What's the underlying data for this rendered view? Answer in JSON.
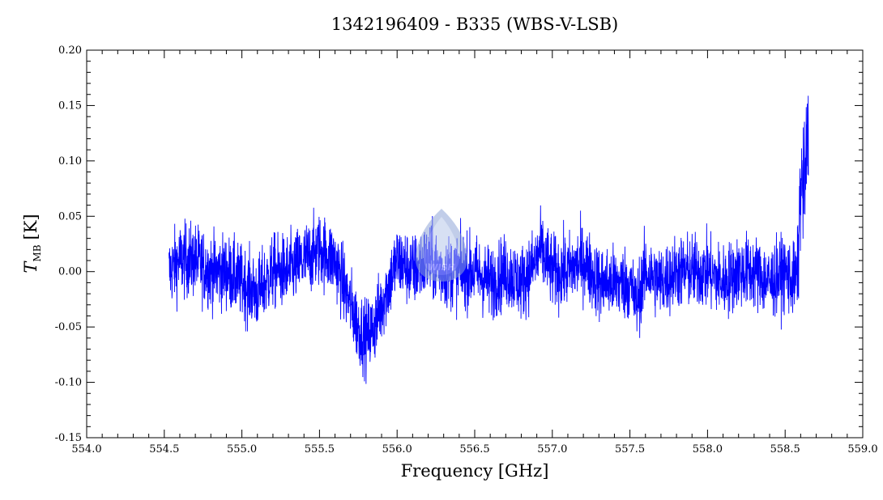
{
  "chart_data": {
    "type": "line",
    "title": "1342196409 - B335 (WBS-V-LSB)",
    "xlabel": "Frequency [GHz]",
    "ylabel_main": "T",
    "ylabel_sub": "MB",
    "ylabel_unit": "[K]",
    "xlim": [
      554.0,
      559.0
    ],
    "ylim": [
      -0.15,
      0.2
    ],
    "x_ticks": [
      "554.0",
      "554.5",
      "555.0",
      "555.5",
      "556.0",
      "556.5",
      "557.0",
      "557.5",
      "558.0",
      "558.5",
      "559.0"
    ],
    "y_ticks": [
      "0.20",
      "0.15",
      "0.10",
      "0.05",
      "0.00",
      "-0.05",
      "-0.10",
      "-0.15"
    ],
    "x_tick_values": [
      554.0,
      554.5,
      555.0,
      555.5,
      556.0,
      556.5,
      557.0,
      557.5,
      558.0,
      558.5,
      559.0
    ],
    "y_tick_values": [
      0.2,
      0.15,
      0.1,
      0.05,
      0.0,
      -0.05,
      -0.1,
      -0.15
    ],
    "grid": false,
    "line_color": "#0000ff",
    "watermark_text": "WISH",
    "series": [
      {
        "x": [
          554.53,
          554.6,
          554.7,
          554.8,
          554.9,
          555.0,
          555.1,
          555.2,
          555.3,
          555.4,
          555.5,
          555.6,
          555.7,
          555.75,
          555.8,
          555.85,
          555.9,
          556.0,
          556.1,
          556.2,
          556.3,
          556.4,
          556.5,
          556.6,
          556.7,
          556.8,
          556.9,
          556.92,
          557.0,
          557.1,
          557.2,
          557.3,
          557.4,
          557.5,
          557.54,
          557.6,
          557.7,
          557.8,
          557.9,
          558.0,
          558.1,
          558.2,
          558.3,
          558.4,
          558.5,
          558.55,
          558.58,
          558.6,
          558.62,
          558.64,
          558.65
        ],
        "y": [
          0.0,
          0.01,
          0.01,
          0.0,
          0.0,
          -0.01,
          -0.02,
          0.0,
          0.0,
          0.01,
          0.02,
          0.01,
          -0.03,
          -0.05,
          -0.06,
          -0.05,
          -0.03,
          0.01,
          0.0,
          0.01,
          0.0,
          0.0,
          0.0,
          -0.01,
          0.0,
          -0.01,
          0.01,
          0.02,
          0.0,
          0.0,
          0.01,
          -0.01,
          -0.01,
          -0.01,
          -0.03,
          0.0,
          -0.01,
          0.0,
          0.0,
          0.0,
          -0.01,
          0.0,
          0.0,
          -0.01,
          0.0,
          -0.01,
          0.0,
          0.08,
          0.07,
          0.11,
          0.12
        ],
        "noise": 0.022
      }
    ]
  }
}
